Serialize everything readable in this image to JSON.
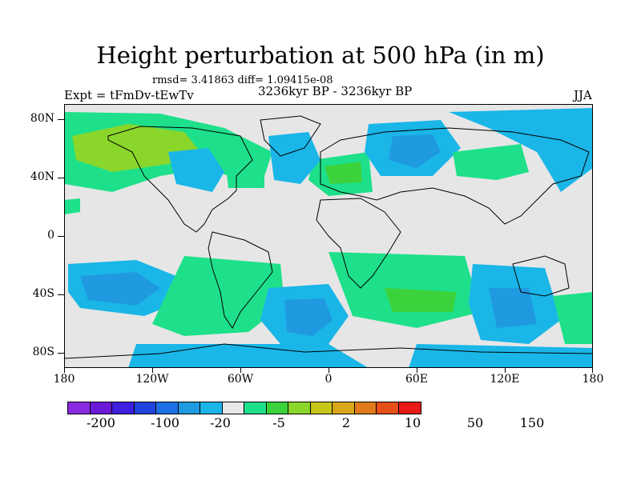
{
  "title": "Height perturbation at 500 hPa (in m)",
  "stats": "rmsd= 3.41863 diff= 1.09415e-08",
  "left_label": "Expt = tFmDv-tEwTv",
  "center_label": "3236kyr BP - 3236kyr BP",
  "right_label": "JJA",
  "lat_labels": [
    "80N",
    "40N",
    "0",
    "40S",
    "80S"
  ],
  "lon_labels": [
    "180",
    "120W",
    "60W",
    "0",
    "60E",
    "120E",
    "180"
  ],
  "colorbar": {
    "colors": [
      "#8a2be2",
      "#6a1ad6",
      "#3d20e0",
      "#1e44dd",
      "#1e6fe6",
      "#1f9ae0",
      "#1ab6e8",
      "#e8e8e8",
      "#1ee08a",
      "#3cd23c",
      "#8ad62a",
      "#c7c71a",
      "#d8a81a",
      "#e07a1a",
      "#e8501a",
      "#e81a1a"
    ],
    "labels": [
      "-200",
      "-100",
      "-20",
      "-5",
      "2",
      "10",
      "50",
      "150"
    ]
  }
}
